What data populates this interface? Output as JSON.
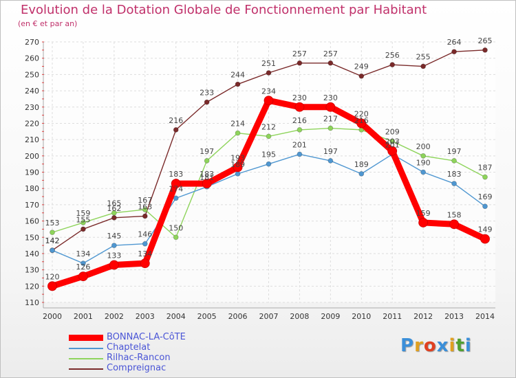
{
  "chart_data": {
    "type": "line",
    "title": "Evolution de la Dotation Globale de Fonctionnement par Habitant",
    "subtitle": "(en € et par an)",
    "xlabel": "",
    "ylabel": "",
    "ylim": [
      110,
      270
    ],
    "yticks": [
      110,
      120,
      130,
      140,
      150,
      160,
      170,
      180,
      190,
      200,
      210,
      220,
      230,
      240,
      250,
      260,
      270
    ],
    "categories": [
      "2000",
      "2001",
      "2002",
      "2003",
      "2004",
      "2005",
      "2006",
      "2007",
      "2008",
      "2009",
      "2010",
      "2011",
      "2012",
      "2013",
      "2014"
    ],
    "grid": true,
    "legend_position": "bottom-left",
    "series": [
      {
        "name": "BONNAC-LA-CôTE",
        "color": "#ff0000",
        "values": [
          120,
          126,
          133,
          134,
          183,
          183,
          193,
          234,
          230,
          230,
          220,
          203,
          159,
          158,
          149
        ]
      },
      {
        "name": "Chaptelat",
        "color": "#4f97d1",
        "values": [
          142,
          134,
          145,
          146,
          174,
          181,
          189,
          195,
          201,
          197,
          189,
          201,
          190,
          183,
          169
        ]
      },
      {
        "name": "Rilhac-Rancon",
        "color": "#8ed45b",
        "values": [
          153,
          159,
          165,
          167,
          150,
          197,
          214,
          212,
          216,
          217,
          216,
          209,
          200,
          197,
          187
        ]
      },
      {
        "name": "Compreignac",
        "color": "#7a2a2a",
        "values": [
          142,
          155,
          162,
          163,
          216,
          233,
          244,
          251,
          257,
          257,
          249,
          256,
          255,
          264,
          265
        ]
      }
    ]
  },
  "logo": {
    "letters": [
      "P",
      "r",
      "o",
      "x",
      "i",
      "t",
      "i"
    ],
    "colors": [
      "#3b8fd9",
      "#e0a020",
      "#e04020",
      "#3b8fd9",
      "#e0a020",
      "#50a030",
      "#3b8fd9"
    ]
  }
}
